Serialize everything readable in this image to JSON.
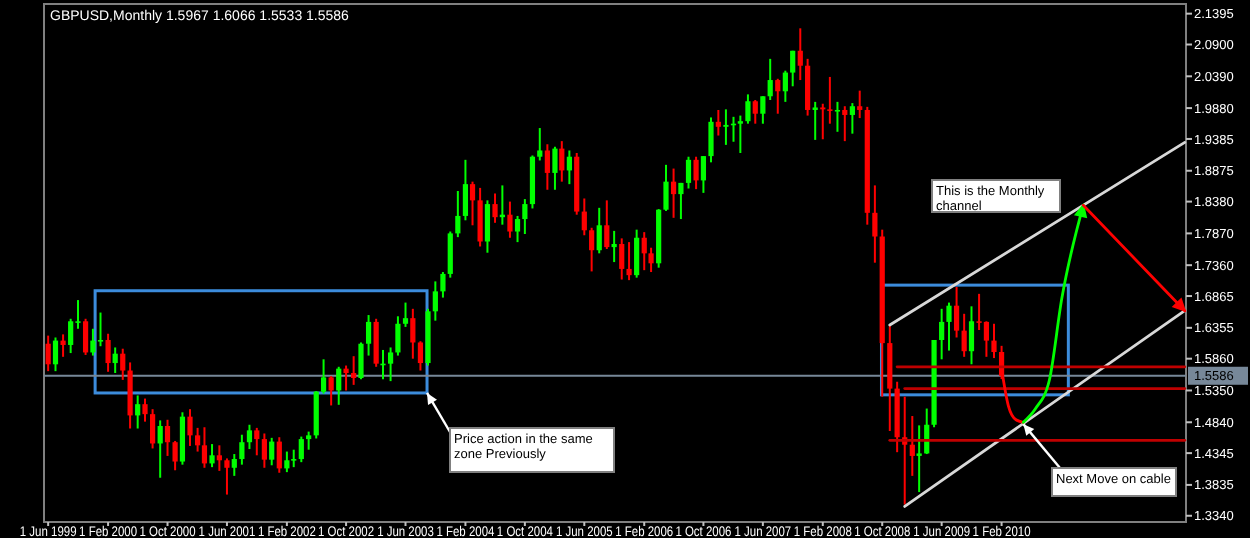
{
  "chart_data": {
    "type": "candlestick",
    "title": "GBPUSD,Monthly  1.5967 1.6066 1.5533 1.5586",
    "colors": [
      "#ff0000",
      "#00ff00",
      "#ff0000",
      "#00ff00",
      "#00ff00",
      "#ff0000",
      "#00ff00",
      "#00ff00",
      "#ff0000",
      "#00ff00",
      "#ff0000",
      "#ff0000",
      "#00ff00",
      "#ff0000",
      "#ff0000",
      "#00ff00",
      "#ff0000",
      "#ff0000",
      "#00ff00",
      "#ff0000",
      "#ff0000",
      "#ff0000",
      "#00ff00",
      "#ff0000",
      "#ff0000",
      "#00ff00",
      "#00ff00",
      "#00ff00",
      "#ff0000",
      "#ff0000",
      "#00ff00",
      "#ff0000",
      "#00ff00",
      "#00ff00",
      "#00ff00",
      "#00ff00",
      "#00ff00",
      "#00ff00",
      "#ff0000",
      "#00ff00",
      "#ff0000",
      "#ff0000",
      "#00ff00",
      "#00ff00",
      "#ff0000",
      "#00ff00",
      "#00ff00",
      "#00ff00",
      "#00ff00",
      "#ff0000",
      "#ff0000",
      "#00ff00",
      "#00ff00",
      "#00ff00",
      "#00ff00",
      "#00ff00",
      "#00ff00",
      "#ff0000",
      "#ff0000",
      "#00ff00",
      "#ff0000",
      "#00ff00",
      "#ff0000",
      "#00ff00",
      "#00ff00",
      "#00ff00",
      "#00ff00",
      "#ff0000",
      "#00ff00",
      "#ff0000",
      "#00ff00",
      "#ff0000",
      "#ff0000",
      "#ff0000",
      "#00ff00",
      "#ff0000",
      "#00ff00",
      "#ff0000",
      "#ff0000",
      "#00ff00",
      "#ff0000",
      "#ff0000",
      "#00ff00",
      "#00ff00",
      "#ff0000",
      "#00ff00",
      "#00ff00",
      "#ff0000",
      "#00ff00",
      "#00ff00",
      "#ff0000",
      "#00ff00",
      "#00ff00",
      "#00ff00",
      "#00ff00",
      "#ff0000",
      "#00ff00",
      "#00ff00",
      "#ff0000",
      "#00ff00",
      "#00ff00",
      "#ff0000",
      "#ff0000",
      "#00ff00",
      "#ff0000",
      "#ff0000",
      "#00ff00",
      "#ff0000",
      "#00ff00",
      "#ff0000",
      "#ff0000",
      "#ff0000",
      "#ff0000",
      "#ff0000",
      "#ff0000",
      "#ff0000",
      "#ff0000",
      "#00ff00",
      "#00ff00",
      "#00ff00",
      "#00ff00",
      "#00ff00",
      "#ff0000",
      "#ff0000",
      "#00ff00",
      "#ff0000",
      "#ff0000",
      "#ff0000",
      "#ff0000"
    ],
    "x": [
      "1999-06",
      "1999-07",
      "1999-08",
      "1999-09",
      "1999-10",
      "1999-11",
      "1999-12",
      "2000-01",
      "2000-02",
      "2000-03",
      "2000-04",
      "2000-05",
      "2000-06",
      "2000-07",
      "2000-08",
      "2000-09",
      "2000-10",
      "2000-11",
      "2000-12",
      "2001-01",
      "2001-02",
      "2001-03",
      "2001-04",
      "2001-05",
      "2001-06",
      "2001-07",
      "2001-08",
      "2001-09",
      "2001-10",
      "2001-11",
      "2001-12",
      "2002-01",
      "2002-02",
      "2002-03",
      "2002-04",
      "2002-05",
      "2002-06",
      "2002-07",
      "2002-08",
      "2002-09",
      "2002-10",
      "2002-11",
      "2002-12",
      "2003-01",
      "2003-02",
      "2003-03",
      "2003-04",
      "2003-05",
      "2003-06",
      "2003-07",
      "2003-08",
      "2003-09",
      "2003-10",
      "2003-11",
      "2003-12",
      "2004-01",
      "2004-02",
      "2004-03",
      "2004-04",
      "2004-05",
      "2004-06",
      "2004-07",
      "2004-08",
      "2004-09",
      "2004-10",
      "2004-11",
      "2004-12",
      "2005-01",
      "2005-02",
      "2005-03",
      "2005-04",
      "2005-05",
      "2005-06",
      "2005-07",
      "2005-08",
      "2005-09",
      "2005-10",
      "2005-11",
      "2005-12",
      "2006-01",
      "2006-02",
      "2006-03",
      "2006-04",
      "2006-05",
      "2006-06",
      "2006-07",
      "2006-08",
      "2006-09",
      "2006-10",
      "2006-11",
      "2006-12",
      "2007-01",
      "2007-02",
      "2007-03",
      "2007-04",
      "2007-05",
      "2007-06",
      "2007-07",
      "2007-08",
      "2007-09",
      "2007-10",
      "2007-11",
      "2007-12",
      "2008-01",
      "2008-02",
      "2008-03",
      "2008-04",
      "2008-05",
      "2008-06",
      "2008-07",
      "2008-08",
      "2008-09",
      "2008-10",
      "2008-11",
      "2008-12",
      "2009-01",
      "2009-02",
      "2009-03",
      "2009-04",
      "2009-05",
      "2009-06",
      "2009-07",
      "2009-08",
      "2009-09",
      "2009-10",
      "2009-11",
      "2009-12",
      "2010-01",
      "2010-02"
    ],
    "ohlc": [
      [
        1.61,
        1.623,
        1.566,
        1.577
      ],
      [
        1.577,
        1.62,
        1.566,
        1.615
      ],
      [
        1.615,
        1.625,
        1.589,
        1.608
      ],
      [
        1.608,
        1.65,
        1.595,
        1.646
      ],
      [
        1.646,
        1.68,
        1.634,
        1.646
      ],
      [
        1.646,
        1.65,
        1.592,
        1.596
      ],
      [
        1.596,
        1.634,
        1.591,
        1.615
      ],
      [
        1.615,
        1.66,
        1.606,
        1.616
      ],
      [
        1.616,
        1.626,
        1.565,
        1.579
      ],
      [
        1.579,
        1.604,
        1.563,
        1.594
      ],
      [
        1.594,
        1.602,
        1.552,
        1.567
      ],
      [
        1.567,
        1.58,
        1.474,
        1.495
      ],
      [
        1.495,
        1.527,
        1.474,
        1.513
      ],
      [
        1.513,
        1.522,
        1.485,
        1.497
      ],
      [
        1.497,
        1.505,
        1.442,
        1.45
      ],
      [
        1.45,
        1.487,
        1.395,
        1.478
      ],
      [
        1.478,
        1.488,
        1.43,
        1.452
      ],
      [
        1.452,
        1.454,
        1.407,
        1.421
      ],
      [
        1.421,
        1.5,
        1.416,
        1.493
      ],
      [
        1.493,
        1.505,
        1.446,
        1.463
      ],
      [
        1.463,
        1.475,
        1.437,
        1.447
      ],
      [
        1.447,
        1.476,
        1.411,
        1.418
      ],
      [
        1.418,
        1.449,
        1.412,
        1.431
      ],
      [
        1.431,
        1.447,
        1.406,
        1.423
      ],
      [
        1.423,
        1.426,
        1.368,
        1.411
      ],
      [
        1.411,
        1.433,
        1.398,
        1.425
      ],
      [
        1.425,
        1.464,
        1.416,
        1.452
      ],
      [
        1.452,
        1.48,
        1.441,
        1.471
      ],
      [
        1.471,
        1.475,
        1.431,
        1.457
      ],
      [
        1.457,
        1.466,
        1.411,
        1.424
      ],
      [
        1.424,
        1.459,
        1.415,
        1.453
      ],
      [
        1.453,
        1.46,
        1.403,
        1.41
      ],
      [
        1.41,
        1.437,
        1.404,
        1.423
      ],
      [
        1.423,
        1.44,
        1.412,
        1.425
      ],
      [
        1.425,
        1.461,
        1.42,
        1.457
      ],
      [
        1.457,
        1.469,
        1.44,
        1.463
      ],
      [
        1.463,
        1.534,
        1.458,
        1.533
      ],
      [
        1.533,
        1.585,
        1.53,
        1.556
      ],
      [
        1.556,
        1.558,
        1.511,
        1.535
      ],
      [
        1.535,
        1.573,
        1.512,
        1.57
      ],
      [
        1.57,
        1.575,
        1.535,
        1.563
      ],
      [
        1.563,
        1.59,
        1.544,
        1.555
      ],
      [
        1.555,
        1.612,
        1.553,
        1.61
      ],
      [
        1.61,
        1.656,
        1.591,
        1.645
      ],
      [
        1.645,
        1.65,
        1.573,
        1.578
      ],
      [
        1.578,
        1.6,
        1.553,
        1.578
      ],
      [
        1.578,
        1.604,
        1.55,
        1.596
      ],
      [
        1.596,
        1.654,
        1.591,
        1.642
      ],
      [
        1.642,
        1.676,
        1.637,
        1.651
      ],
      [
        1.651,
        1.666,
        1.586,
        1.612
      ],
      [
        1.612,
        1.614,
        1.567,
        1.579
      ],
      [
        1.579,
        1.666,
        1.575,
        1.662
      ],
      [
        1.662,
        1.71,
        1.647,
        1.694
      ],
      [
        1.694,
        1.725,
        1.684,
        1.722
      ],
      [
        1.722,
        1.79,
        1.716,
        1.787
      ],
      [
        1.787,
        1.855,
        1.781,
        1.815
      ],
      [
        1.815,
        1.905,
        1.808,
        1.866
      ],
      [
        1.866,
        1.87,
        1.8,
        1.84
      ],
      [
        1.84,
        1.86,
        1.766,
        1.774
      ],
      [
        1.774,
        1.84,
        1.756,
        1.834
      ],
      [
        1.834,
        1.851,
        1.804,
        1.813
      ],
      [
        1.813,
        1.864,
        1.801,
        1.817
      ],
      [
        1.817,
        1.838,
        1.78,
        1.79
      ],
      [
        1.79,
        1.815,
        1.773,
        1.81
      ],
      [
        1.81,
        1.842,
        1.786,
        1.834
      ],
      [
        1.834,
        1.912,
        1.827,
        1.91
      ],
      [
        1.91,
        1.956,
        1.904,
        1.92
      ],
      [
        1.92,
        1.93,
        1.857,
        1.884
      ],
      [
        1.884,
        1.926,
        1.857,
        1.923
      ],
      [
        1.923,
        1.935,
        1.87,
        1.888
      ],
      [
        1.888,
        1.92,
        1.866,
        1.91
      ],
      [
        1.91,
        1.916,
        1.817,
        1.822
      ],
      [
        1.822,
        1.843,
        1.784,
        1.792
      ],
      [
        1.792,
        1.796,
        1.726,
        1.76
      ],
      [
        1.76,
        1.828,
        1.755,
        1.8
      ],
      [
        1.8,
        1.84,
        1.762,
        1.765
      ],
      [
        1.765,
        1.791,
        1.741,
        1.77
      ],
      [
        1.77,
        1.779,
        1.713,
        1.73
      ],
      [
        1.73,
        1.773,
        1.712,
        1.72
      ],
      [
        1.72,
        1.793,
        1.716,
        1.78
      ],
      [
        1.78,
        1.789,
        1.728,
        1.755
      ],
      [
        1.755,
        1.764,
        1.725,
        1.739
      ],
      [
        1.739,
        1.826,
        1.732,
        1.825
      ],
      [
        1.825,
        1.897,
        1.823,
        1.87
      ],
      [
        1.87,
        1.891,
        1.812,
        1.85
      ],
      [
        1.85,
        1.868,
        1.81,
        1.868
      ],
      [
        1.868,
        1.91,
        1.859,
        1.905
      ],
      [
        1.905,
        1.91,
        1.858,
        1.872
      ],
      [
        1.872,
        1.911,
        1.852,
        1.911
      ],
      [
        1.911,
        1.973,
        1.901,
        1.966
      ],
      [
        1.966,
        1.985,
        1.944,
        1.958
      ],
      [
        1.958,
        1.986,
        1.929,
        1.961
      ],
      [
        1.961,
        1.974,
        1.934,
        1.963
      ],
      [
        1.963,
        1.976,
        1.916,
        1.967
      ],
      [
        1.967,
        2.01,
        1.963,
        1.999
      ],
      [
        1.999,
        2.001,
        1.963,
        1.979
      ],
      [
        1.979,
        2.007,
        1.963,
        2.007
      ],
      [
        2.007,
        2.067,
        2.001,
        2.033
      ],
      [
        2.033,
        2.035,
        1.979,
        2.015
      ],
      [
        2.015,
        2.048,
        1.998,
        2.045
      ],
      [
        2.045,
        2.08,
        2.023,
        2.08
      ],
      [
        2.08,
        2.116,
        2.033,
        2.056
      ],
      [
        2.056,
        2.067,
        1.976,
        1.985
      ],
      [
        1.985,
        1.998,
        1.937,
        1.989
      ],
      [
        1.989,
        1.995,
        1.938,
        1.986
      ],
      [
        1.986,
        2.038,
        1.963,
        1.984
      ],
      [
        1.984,
        1.998,
        1.95,
        1.985
      ],
      [
        1.985,
        1.991,
        1.935,
        1.977
      ],
      [
        1.977,
        1.996,
        1.947,
        1.991
      ],
      [
        1.991,
        2.016,
        1.972,
        1.985
      ],
      [
        1.985,
        1.99,
        1.801,
        1.82
      ],
      [
        1.82,
        1.864,
        1.74,
        1.782
      ],
      [
        1.782,
        1.793,
        1.525,
        1.611
      ],
      [
        1.611,
        1.64,
        1.47,
        1.538
      ],
      [
        1.538,
        1.549,
        1.436,
        1.46
      ],
      [
        1.46,
        1.525,
        1.352,
        1.448
      ],
      [
        1.448,
        1.494,
        1.398,
        1.43
      ],
      [
        1.43,
        1.479,
        1.372,
        1.434
      ],
      [
        1.434,
        1.506,
        1.433,
        1.48
      ],
      [
        1.48,
        1.616,
        1.476,
        1.616
      ],
      [
        1.616,
        1.666,
        1.585,
        1.645
      ],
      [
        1.645,
        1.676,
        1.599,
        1.671
      ],
      [
        1.671,
        1.701,
        1.62,
        1.631
      ],
      [
        1.631,
        1.658,
        1.589,
        1.598
      ],
      [
        1.598,
        1.67,
        1.577,
        1.646
      ],
      [
        1.646,
        1.69,
        1.632,
        1.645
      ],
      [
        1.645,
        1.646,
        1.589,
        1.615
      ],
      [
        1.615,
        1.642,
        1.587,
        1.5967
      ],
      [
        1.5967,
        1.6066,
        1.5533,
        1.5586
      ]
    ],
    "series": [
      {
        "type": "line",
        "color": "#d8d8d8",
        "x": [
          "2008-11-01",
          "2012-02-20"
        ],
        "values": [
          1.64,
          1.933
        ]
      },
      {
        "type": "line",
        "color": "#d8d8d8",
        "x": [
          "2009-01-01",
          "2012-02-20"
        ],
        "values": [
          1.349,
          1.663
        ]
      },
      {
        "type": "line",
        "color": "#c00000",
        "x": [
          "2008-12-01",
          "2012-02-20"
        ],
        "values": [
          1.573,
          1.573
        ]
      },
      {
        "type": "line",
        "color": "#c00000",
        "x": [
          "2009-01-01",
          "2012-02-20"
        ],
        "values": [
          1.538,
          1.538
        ]
      },
      {
        "type": "line",
        "color": "#c00000",
        "x": [
          "2008-11-01",
          "2012-02-20"
        ],
        "values": [
          1.455,
          1.455
        ]
      }
    ],
    "ref_lines": [
      {
        "axis": "y",
        "value": 1.5586,
        "label": "1.5586",
        "color": "#778899"
      }
    ],
    "annotations": [
      "Price action in the same zone Previously",
      "This is the Monthly channel",
      "Next Move on cable"
    ],
    "xlim": [
      "1999-05-15",
      "2012-02-25"
    ],
    "xticks": [
      {
        "value": "1999-06",
        "label": "1 Jun 1999"
      },
      {
        "value": "2000-02",
        "label": "1 Feb 2000"
      },
      {
        "value": "2000-10",
        "label": "1 Oct 2000"
      },
      {
        "value": "2001-06",
        "label": "1 Jun 2001"
      },
      {
        "value": "2002-02",
        "label": "1 Feb 2002"
      },
      {
        "value": "2002-10",
        "label": "1 Oct 2002"
      },
      {
        "value": "2003-06",
        "label": "1 Jun 2003"
      },
      {
        "value": "2004-02",
        "label": "1 Feb 2004"
      },
      {
        "value": "2004-10",
        "label": "1 Oct 2004"
      },
      {
        "value": "2005-06",
        "label": "1 Jun 2005"
      },
      {
        "value": "2006-02",
        "label": "1 Feb 2006"
      },
      {
        "value": "2006-10",
        "label": "1 Oct 2006"
      },
      {
        "value": "2007-06",
        "label": "1 Jun 2007"
      },
      {
        "value": "2008-02",
        "label": "1 Feb 2008"
      },
      {
        "value": "2008-10",
        "label": "1 Oct 2008"
      },
      {
        "value": "2009-06",
        "label": "1 Jun 2009"
      },
      {
        "value": "2010-02",
        "label": "1 Feb 2010"
      }
    ],
    "ylim": [
      1.324,
      2.155
    ],
    "yticks": [
      2.1395,
      {
        "value": 2.09,
        "label": "2.0900"
      },
      {
        "value": 2.039,
        "label": "2.0390"
      },
      {
        "value": 1.988,
        "label": "1.9880"
      },
      1.9385,
      1.8875,
      {
        "value": 1.838,
        "label": "1.8380"
      },
      {
        "value": 1.787,
        "label": "1.7870"
      },
      {
        "value": 1.736,
        "label": "1.7360"
      },
      1.6865,
      1.6355,
      {
        "value": 1.586,
        "label": "1.5860"
      },
      {
        "value": 1.535,
        "label": "1.5350"
      },
      {
        "value": 1.484,
        "label": "1.4840"
      },
      1.4345,
      1.3835,
      {
        "value": 1.334,
        "label": "1.3340"
      }
    ]
  }
}
